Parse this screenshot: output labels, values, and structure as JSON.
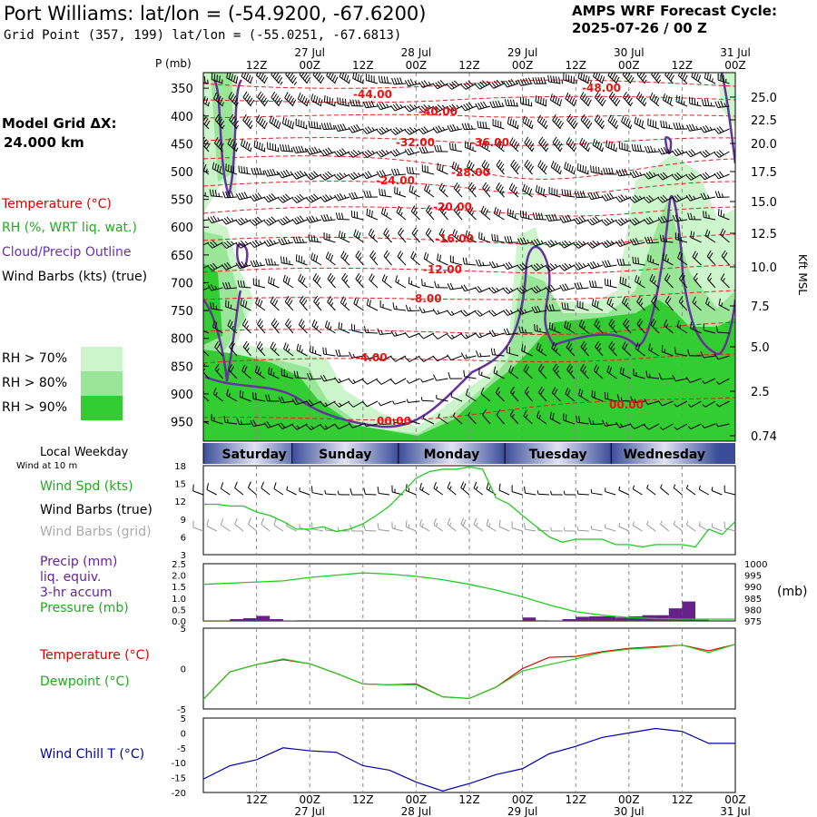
{
  "header": {
    "title": "Port Williams:  lat/lon = (-54.9200, -67.6200)",
    "subtitle": "Grid Point (357, 199) lat/lon = (-55.0251, -67.6813)",
    "cycle_line1": "AMPS WRF Forecast Cycle:",
    "cycle_line2": "2025-07-26 / 00  Z"
  },
  "top_time_axis": {
    "hour_labels": [
      "12Z",
      "00Z",
      "12Z",
      "00Z",
      "12Z",
      "00Z",
      "12Z",
      "00Z",
      "12Z",
      "00Z"
    ],
    "date_labels": [
      "27 Jul",
      "28 Jul",
      "29 Jul",
      "30 Jul",
      "31 Jul"
    ]
  },
  "left_legend": {
    "model_grid_title": "Model Grid ΔX:",
    "model_grid_value": "24.000 km",
    "temperature": "Temperature (°C)",
    "rh": "RH (%, WRT liq. wat.)",
    "cloud": "Cloud/Precip Outline",
    "wind": "Wind Barbs (kts) (true)",
    "rh70": "RH > 70%",
    "rh80": "RH > 80%",
    "rh90": "RH > 90%",
    "rh_colors": [
      "#ccf5cc",
      "#99e699",
      "#33cc33"
    ]
  },
  "weekday": {
    "title": "Local Weekday",
    "wind_note": "Wind at 10 m",
    "days": [
      "Saturday",
      "Sunday",
      "Monday",
      "Tuesday",
      "Wednesday"
    ]
  },
  "panel_labels": {
    "wind_spd": "Wind Spd (kts)",
    "wind_barbs_true": "Wind Barbs (true)",
    "wind_barbs_grid": "Wind Barbs (grid)",
    "precip": "Precip (mm)",
    "liq_equiv": "liq. equiv.",
    "accum": "3-hr accum",
    "pressure": "Pressure (mb)",
    "pressure_unit": "(mb)",
    "temperature": "Temperature (°C)",
    "dewpoint": "Dewpoint (°C)",
    "wind_chill": "Wind Chill T (°C)"
  },
  "colors": {
    "temperature": "#dd0000",
    "rh_line": "#22cc22",
    "cloud": "#6633aa",
    "wind_chill": "#0000aa",
    "precip_bar": "#662288",
    "barb_grid": "#999999"
  },
  "chart_data": [
    {
      "type": "heatmap",
      "name": "cross-section",
      "ylabel": "P (mb)",
      "y2label": "Kft MSL",
      "pressure_ticks": [
        350,
        400,
        450,
        500,
        550,
        600,
        650,
        700,
        750,
        800,
        850,
        900,
        950
      ],
      "height_ticks": [
        "25.0",
        "22.5",
        "20.0",
        "17.5",
        "15.0",
        "12.5",
        "10.0",
        "7.5",
        "5.0",
        "2.5",
        "0.74"
      ],
      "temperature_contour_labels": [
        "-44.00",
        "-40.00",
        "-32.00",
        "-36.00",
        "-28.00",
        "-24.00",
        "-20.00",
        "-16.00",
        "-12.00",
        "-8.00",
        "-4.00",
        "00.00",
        "-48.00",
        "00.00"
      ]
    },
    {
      "type": "line",
      "name": "wind-speed",
      "ylabel": "Wind Spd (kts)",
      "y_ticks": [
        3,
        6,
        9,
        12,
        15,
        18
      ],
      "ylim": [
        3,
        18
      ],
      "x_hours": [
        0,
        3,
        6,
        9,
        12,
        15,
        18,
        21,
        24,
        27,
        30,
        33,
        36,
        39,
        42,
        45,
        48,
        51,
        54,
        57,
        60,
        63,
        66,
        69,
        72,
        75,
        78,
        81,
        84,
        87,
        90,
        93,
        96,
        99,
        102,
        105,
        108,
        111,
        114,
        117,
        120
      ],
      "values": [
        11.5,
        11.5,
        11.2,
        11.2,
        10.2,
        9.6,
        8.6,
        7.3,
        7.3,
        7.7,
        6.9,
        7.3,
        8.2,
        9.6,
        11.2,
        13.5,
        15.9,
        17.0,
        17.4,
        17.4,
        17.8,
        17.4,
        12.6,
        11.5,
        9.6,
        7.8,
        6.0,
        5.1,
        5.6,
        5.6,
        5.6,
        4.7,
        4.7,
        4.3,
        4.7,
        4.7,
        4.7,
        4.3,
        7.3,
        6.4,
        8.6
      ]
    },
    {
      "type": "bar",
      "name": "precip",
      "ylabel": "Precip (mm)",
      "y_ticks": [
        0.0,
        0.5,
        1.0,
        1.5,
        2.0,
        2.5
      ],
      "ylim": [
        0,
        2.5
      ],
      "x_hours": [
        3,
        6,
        9,
        12,
        15,
        18,
        21,
        24,
        27,
        30,
        33,
        36,
        39,
        42,
        45,
        48,
        51,
        54,
        57,
        60,
        63,
        66,
        69,
        72,
        75,
        78,
        81,
        84,
        87,
        90,
        93,
        96,
        99,
        102,
        105,
        108,
        111,
        114,
        117,
        120
      ],
      "values": [
        0.02,
        0.02,
        0.08,
        0.12,
        0.22,
        0.08,
        0.02,
        0.0,
        0.0,
        0.0,
        0.0,
        0.0,
        0.0,
        0.0,
        0.0,
        0.0,
        0.0,
        0.0,
        0.0,
        0.0,
        0.0,
        0.0,
        0.0,
        0.0,
        0.15,
        0.0,
        0.02,
        0.08,
        0.18,
        0.2,
        0.2,
        0.15,
        0.2,
        0.25,
        0.25,
        0.55,
        0.85,
        0.05,
        0.0,
        0.0
      ]
    },
    {
      "type": "line",
      "name": "pressure",
      "ylabel": "Pressure (mb)",
      "y_ticks": [
        975,
        980,
        985,
        990,
        995,
        1000
      ],
      "ylim": [
        975,
        1000
      ],
      "x_hours": [
        0,
        6,
        12,
        18,
        24,
        30,
        36,
        42,
        48,
        54,
        60,
        66,
        72,
        78,
        84,
        90,
        96,
        102,
        108,
        114,
        120
      ],
      "values": [
        991,
        991.5,
        992,
        992.5,
        994,
        995,
        996,
        995.5,
        994.5,
        993,
        991,
        988.5,
        985.5,
        982,
        979,
        977.5,
        976.5,
        976,
        975.8,
        975.8,
        975.8
      ]
    },
    {
      "type": "line",
      "name": "temp-dewpoint",
      "y_ticks": [
        -5,
        0,
        5
      ],
      "ylim": [
        -5,
        5
      ],
      "x_hours": [
        0,
        6,
        12,
        18,
        24,
        30,
        36,
        42,
        48,
        54,
        60,
        66,
        72,
        78,
        84,
        90,
        96,
        102,
        108,
        114,
        120
      ],
      "series": [
        {
          "name": "Temperature (°C)",
          "values": [
            -3.8,
            -0.4,
            0.5,
            1.1,
            0.6,
            -0.6,
            -1.9,
            -2.0,
            -1.9,
            -3.5,
            -3.7,
            -2.3,
            0.0,
            1.4,
            1.5,
            2.1,
            2.5,
            2.7,
            2.9,
            2.2,
            3.0
          ]
        },
        {
          "name": "Dewpoint (°C)",
          "values": [
            -3.8,
            -0.4,
            0.5,
            1.2,
            0.6,
            -0.6,
            -1.9,
            -2.0,
            -2.0,
            -3.5,
            -3.7,
            -2.3,
            -0.3,
            0.5,
            1.2,
            2.0,
            2.4,
            2.6,
            2.9,
            2.0,
            3.0
          ]
        }
      ]
    },
    {
      "type": "line",
      "name": "wind-chill",
      "ylabel": "Wind Chill T (°C)",
      "y_ticks": [
        -20,
        -15,
        -10,
        -5,
        0,
        5
      ],
      "ylim": [
        -20,
        5
      ],
      "x_hours": [
        0,
        6,
        12,
        18,
        24,
        30,
        36,
        42,
        48,
        54,
        60,
        66,
        72,
        78,
        84,
        90,
        96,
        102,
        108,
        114,
        120
      ],
      "values": [
        -15.5,
        -11.0,
        -9.0,
        -5.0,
        -6.0,
        -6.5,
        -11.0,
        -12.5,
        -16.5,
        -19.5,
        -17.0,
        -14.0,
        -12.0,
        -7.0,
        -4.5,
        -1.5,
        0.0,
        1.5,
        0.5,
        -3.5,
        -3.5
      ]
    }
  ]
}
